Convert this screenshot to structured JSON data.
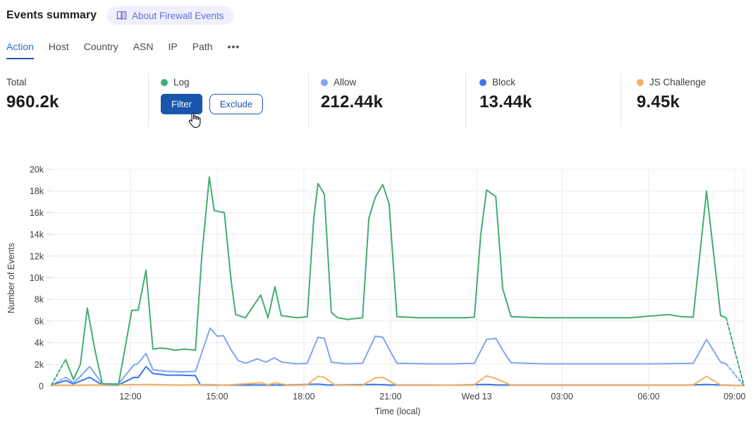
{
  "header": {
    "title": "Events summary",
    "about_badge_label": "About Firewall Events"
  },
  "tabs": {
    "items": [
      "Action",
      "Host",
      "Country",
      "ASN",
      "IP",
      "Path"
    ],
    "active": "Action",
    "more_label": "•••"
  },
  "stats": {
    "total": {
      "label": "Total",
      "value": "960.2k"
    },
    "log": {
      "label": "Log",
      "dot_color": "#42ad72",
      "filter_label": "Filter",
      "exclude_label": "Exclude"
    },
    "allow": {
      "label": "Allow",
      "value": "212.44k",
      "dot_color": "#7ea6f2"
    },
    "block": {
      "label": "Block",
      "value": "13.44k",
      "dot_color": "#3d77e6"
    },
    "js_challenge": {
      "label": "JS Challenge",
      "value": "9.45k",
      "dot_color": "#f0b263"
    }
  },
  "colors": {
    "accent_blue": "#1a56ab",
    "active_tab": "#2e6bd0",
    "badge_purple": "#666bdb",
    "grid": "#ebebeb",
    "axis_text": "#3f3f3f"
  },
  "chart_data": {
    "type": "line",
    "xlabel": "Time (local)",
    "ylabel": "Number of Events",
    "x_unit": "hours from start of displayed range",
    "y_unit": "thousands of events",
    "xlim": [
      0,
      23.95
    ],
    "ylim": [
      0,
      20
    ],
    "grid": true,
    "legend_position": "stats-row-above-chart",
    "x_ticks": [
      {
        "t": 2.73,
        "label": "12:00"
      },
      {
        "t": 5.73,
        "label": "15:00"
      },
      {
        "t": 8.73,
        "label": "18:00"
      },
      {
        "t": 11.73,
        "label": "21:00"
      },
      {
        "t": 14.71,
        "label": "Wed 13"
      },
      {
        "t": 17.66,
        "label": "03:00"
      },
      {
        "t": 20.66,
        "label": "06:00"
      },
      {
        "t": 23.63,
        "label": "09:00"
      }
    ],
    "y_ticks": [
      {
        "v": 0,
        "label": "0"
      },
      {
        "v": 2,
        "label": "2k"
      },
      {
        "v": 4,
        "label": "4k"
      },
      {
        "v": 6,
        "label": "6k"
      },
      {
        "v": 8,
        "label": "8k"
      },
      {
        "v": 10,
        "label": "10k"
      },
      {
        "v": 12,
        "label": "12k"
      },
      {
        "v": 14,
        "label": "14k"
      },
      {
        "v": 16,
        "label": "16k"
      },
      {
        "v": 18,
        "label": "18k"
      },
      {
        "v": 20,
        "label": "20k"
      }
    ],
    "series": [
      {
        "name": "Block",
        "color": "#3d77e6",
        "points": [
          [
            0,
            0.1
          ],
          [
            0.49,
            0.5
          ],
          [
            0.76,
            0.2
          ],
          [
            1.32,
            0.8
          ],
          [
            1.76,
            0.1
          ],
          [
            2.32,
            0.1
          ],
          [
            2.85,
            0.8
          ],
          [
            3.0,
            0.78
          ],
          [
            3.27,
            1.8
          ],
          [
            3.51,
            1.15
          ],
          [
            4.0,
            1.0
          ],
          [
            4.49,
            1.0
          ],
          [
            4.98,
            0.95
          ],
          [
            5.15,
            0.12
          ],
          [
            6.0,
            0.1
          ],
          [
            8.0,
            0.1
          ],
          [
            9.22,
            0.17
          ],
          [
            9.6,
            0.1
          ],
          [
            11.2,
            0.15
          ],
          [
            11.7,
            0.1
          ],
          [
            14.0,
            0.1
          ],
          [
            15.05,
            0.15
          ],
          [
            15.5,
            0.1
          ],
          [
            18.0,
            0.1
          ],
          [
            20.0,
            0.1
          ],
          [
            22.0,
            0.1
          ],
          [
            22.66,
            0.15
          ],
          [
            23.15,
            0.1
          ],
          [
            23.95,
            0.05
          ]
        ]
      },
      {
        "name": "Allow",
        "color": "#7ea6f2",
        "lead_dash": [
          [
            0,
            0.08
          ],
          [
            0.49,
            0.8
          ]
        ],
        "points": [
          [
            0.49,
            0.8
          ],
          [
            0.76,
            0.3
          ],
          [
            1.0,
            0.9
          ],
          [
            1.32,
            1.8
          ],
          [
            1.76,
            0.2
          ],
          [
            2.32,
            0.2
          ],
          [
            2.85,
            1.95
          ],
          [
            3.0,
            2.1
          ],
          [
            3.27,
            3.0
          ],
          [
            3.51,
            1.5
          ],
          [
            4.0,
            1.35
          ],
          [
            4.49,
            1.3
          ],
          [
            4.98,
            1.35
          ],
          [
            5.49,
            5.35
          ],
          [
            5.73,
            4.6
          ],
          [
            5.95,
            4.65
          ],
          [
            6.2,
            3.4
          ],
          [
            6.46,
            2.35
          ],
          [
            6.71,
            2.1
          ],
          [
            7.12,
            2.5
          ],
          [
            7.41,
            2.2
          ],
          [
            7.71,
            2.6
          ],
          [
            7.98,
            2.2
          ],
          [
            8.5,
            2.05
          ],
          [
            8.85,
            2.1
          ],
          [
            9.22,
            4.5
          ],
          [
            9.44,
            4.4
          ],
          [
            9.68,
            2.2
          ],
          [
            10.2,
            2.05
          ],
          [
            10.76,
            2.1
          ],
          [
            11.2,
            4.6
          ],
          [
            11.46,
            4.5
          ],
          [
            11.76,
            3.0
          ],
          [
            11.95,
            2.1
          ],
          [
            13.0,
            2.05
          ],
          [
            14.0,
            2.05
          ],
          [
            14.63,
            2.1
          ],
          [
            15.05,
            4.3
          ],
          [
            15.37,
            4.4
          ],
          [
            15.68,
            3.0
          ],
          [
            15.9,
            2.15
          ],
          [
            17.0,
            2.05
          ],
          [
            19.0,
            2.05
          ],
          [
            21.0,
            2.05
          ],
          [
            22.2,
            2.1
          ],
          [
            22.66,
            4.3
          ],
          [
            23.15,
            2.2
          ],
          [
            23.34,
            2.05
          ]
        ],
        "tail_dash": [
          [
            23.34,
            2.05
          ],
          [
            23.95,
            0.05
          ]
        ]
      },
      {
        "name": "JS Challenge",
        "color": "#f0b263",
        "points": [
          [
            0,
            0.08
          ],
          [
            1.32,
            0.1
          ],
          [
            3.27,
            0.15
          ],
          [
            4.5,
            0.1
          ],
          [
            5.46,
            0.15
          ],
          [
            6.0,
            0.08
          ],
          [
            7.24,
            0.3
          ],
          [
            7.49,
            0.12
          ],
          [
            7.73,
            0.3
          ],
          [
            8.2,
            0.08
          ],
          [
            8.85,
            0.12
          ],
          [
            9.22,
            0.9
          ],
          [
            9.44,
            0.8
          ],
          [
            9.8,
            0.1
          ],
          [
            10.76,
            0.08
          ],
          [
            11.2,
            0.75
          ],
          [
            11.46,
            0.8
          ],
          [
            11.95,
            0.08
          ],
          [
            13.0,
            0.08
          ],
          [
            14.63,
            0.12
          ],
          [
            15.05,
            0.95
          ],
          [
            15.37,
            0.7
          ],
          [
            15.9,
            0.08
          ],
          [
            17.5,
            0.08
          ],
          [
            20.0,
            0.08
          ],
          [
            22.2,
            0.1
          ],
          [
            22.66,
            0.9
          ],
          [
            23.15,
            0.1
          ],
          [
            23.95,
            0.05
          ]
        ]
      },
      {
        "name": "Log",
        "color": "#42ad72",
        "lead_dash": [
          [
            0,
            0.1
          ],
          [
            0.49,
            2.45
          ]
        ],
        "points": [
          [
            0.49,
            2.45
          ],
          [
            0.76,
            0.6
          ],
          [
            1.0,
            2.0
          ],
          [
            1.24,
            7.2
          ],
          [
            1.49,
            3.5
          ],
          [
            1.76,
            0.2
          ],
          [
            2.32,
            0.15
          ],
          [
            2.78,
            7.0
          ],
          [
            3.0,
            7.0
          ],
          [
            3.27,
            10.7
          ],
          [
            3.51,
            3.4
          ],
          [
            3.76,
            3.5
          ],
          [
            4.0,
            3.45
          ],
          [
            4.27,
            3.3
          ],
          [
            4.61,
            3.4
          ],
          [
            4.98,
            3.3
          ],
          [
            5.2,
            12.0
          ],
          [
            5.46,
            19.3
          ],
          [
            5.63,
            16.2
          ],
          [
            5.98,
            16.0
          ],
          [
            6.22,
            9.6
          ],
          [
            6.37,
            6.6
          ],
          [
            6.71,
            6.3
          ],
          [
            7.24,
            8.4
          ],
          [
            7.49,
            6.3
          ],
          [
            7.73,
            9.15
          ],
          [
            7.95,
            6.5
          ],
          [
            8.5,
            6.3
          ],
          [
            8.85,
            6.4
          ],
          [
            9.07,
            15.4
          ],
          [
            9.22,
            18.7
          ],
          [
            9.44,
            17.7
          ],
          [
            9.68,
            6.8
          ],
          [
            9.9,
            6.3
          ],
          [
            10.24,
            6.15
          ],
          [
            10.76,
            6.3
          ],
          [
            10.98,
            15.5
          ],
          [
            11.2,
            17.4
          ],
          [
            11.46,
            18.6
          ],
          [
            11.68,
            16.8
          ],
          [
            11.95,
            6.4
          ],
          [
            12.7,
            6.3
          ],
          [
            13.5,
            6.3
          ],
          [
            14.3,
            6.3
          ],
          [
            14.63,
            6.35
          ],
          [
            14.85,
            14.0
          ],
          [
            15.05,
            18.1
          ],
          [
            15.37,
            17.5
          ],
          [
            15.61,
            9.0
          ],
          [
            15.9,
            6.4
          ],
          [
            17.0,
            6.3
          ],
          [
            18.5,
            6.3
          ],
          [
            20.0,
            6.3
          ],
          [
            21.34,
            6.6
          ],
          [
            21.8,
            6.4
          ],
          [
            22.2,
            6.35
          ],
          [
            22.66,
            18.0
          ],
          [
            23.15,
            6.5
          ],
          [
            23.34,
            6.3
          ]
        ],
        "tail_dash": [
          [
            23.34,
            6.3
          ],
          [
            23.95,
            0.1
          ]
        ]
      }
    ]
  }
}
